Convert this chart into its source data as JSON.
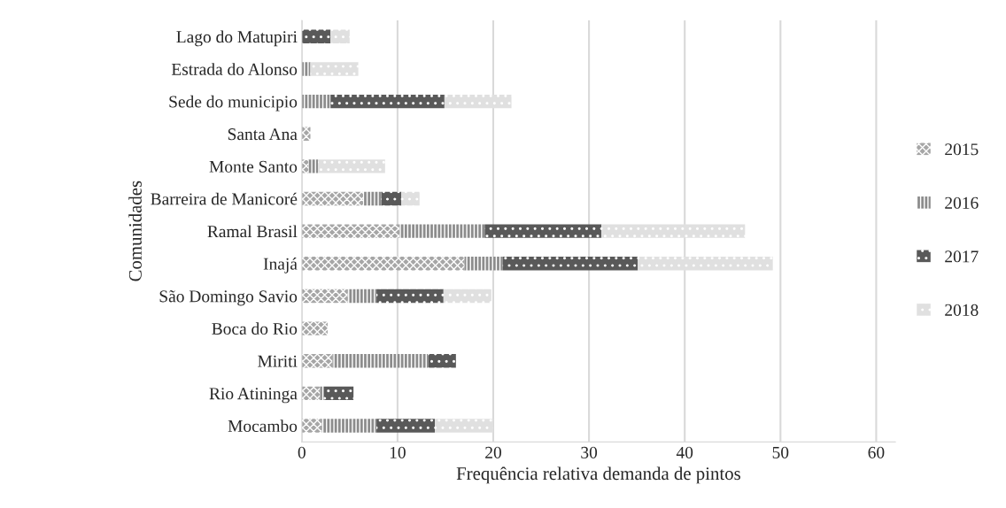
{
  "chart_data": {
    "type": "bar",
    "orientation": "horizontal",
    "stacked": true,
    "xlabel": "Frequência relativa demanda de pintos",
    "ylabel": "Comunidades",
    "categories": [
      "Lago do Matupiri",
      "Estrada do Alonso",
      "Sede do municipio",
      "Santa Ana",
      "Monte Santo",
      "Barreira de Manicoré",
      "Ramal Brasil",
      "Inajá",
      "São Domingo Savio",
      "Boca do Rio",
      "Miriti",
      "Rio Atininga",
      "Mocambo"
    ],
    "series": [
      {
        "name": "2015",
        "color": "#a6a6a6",
        "values": [
          0,
          0,
          0,
          0.9,
          0.7,
          6.4,
          10.2,
          17.0,
          4.8,
          2.7,
          3.2,
          1.9,
          2.1
        ]
      },
      {
        "name": "2016",
        "color": "#8c8c8c",
        "values": [
          0,
          0.9,
          3.0,
          0,
          1.0,
          1.9,
          8.9,
          4.0,
          3.0,
          0,
          10.0,
          0.4,
          5.7
        ]
      },
      {
        "name": "2017",
        "color": "#595959",
        "values": [
          3.0,
          0,
          11.9,
          0,
          0,
          2.1,
          12.2,
          14.1,
          7.0,
          0,
          2.9,
          3.1,
          6.1
        ]
      },
      {
        "name": "2018",
        "color": "#e0e0e0",
        "values": [
          2.0,
          5.0,
          7.0,
          0,
          7.0,
          1.9,
          15.0,
          14.1,
          5.0,
          0,
          0,
          0,
          6.1
        ]
      }
    ],
    "xlim": [
      0,
      62
    ],
    "xticks": [
      0,
      10,
      20,
      30,
      40,
      50,
      60
    ],
    "grid": "x",
    "legend": "right"
  }
}
